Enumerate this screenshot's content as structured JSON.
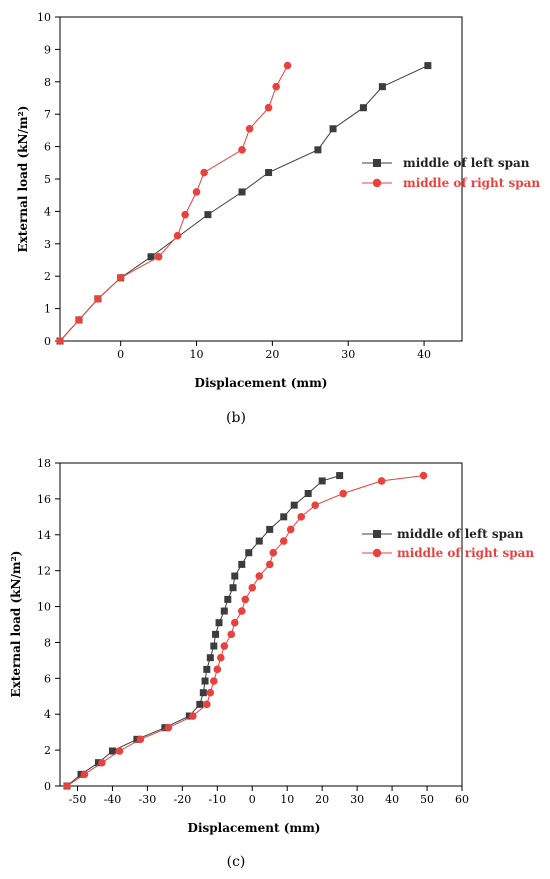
{
  "chart_data": [
    {
      "type": "line",
      "caption": "(b)",
      "xlabel": "Displacement (mm)",
      "ylabel": "External load (kN/m²)",
      "xlim": [
        -8,
        45
      ],
      "ylim": [
        0,
        10
      ],
      "xticks": [
        0,
        10,
        20,
        30,
        40
      ],
      "yticks": [
        0,
        1,
        2,
        3,
        4,
        5,
        6,
        7,
        8,
        9,
        10
      ],
      "legend_position": "right",
      "series": [
        {
          "name": "middle of left span",
          "color": "#3c3c3c",
          "marker": "square",
          "x": [
            -8,
            -5.5,
            -3,
            0,
            4,
            11.5,
            16,
            19.5,
            26,
            28,
            32,
            34.5,
            40.5
          ],
          "y": [
            0,
            0.65,
            1.3,
            1.95,
            2.6,
            3.9,
            4.6,
            5.2,
            5.9,
            6.55,
            7.2,
            7.85,
            8.5
          ]
        },
        {
          "name": "middle of right span",
          "color": "#e8423f",
          "marker": "circle",
          "x": [
            -8,
            -5.5,
            -3,
            0,
            5,
            7.5,
            8.5,
            10,
            11,
            16,
            17,
            19.5,
            20.5,
            22
          ],
          "y": [
            0,
            0.65,
            1.3,
            1.95,
            2.6,
            3.25,
            3.9,
            4.6,
            5.2,
            5.9,
            6.55,
            7.2,
            7.85,
            8.5
          ]
        }
      ]
    },
    {
      "type": "line",
      "caption": "(c)",
      "xlabel": "Displacement (mm)",
      "ylabel": "External load (kN/m²)",
      "xlim": [
        -55,
        60
      ],
      "ylim": [
        0,
        18
      ],
      "xticks": [
        -50,
        -40,
        -30,
        -20,
        -10,
        0,
        10,
        20,
        30,
        40,
        50,
        60
      ],
      "yticks": [
        0,
        2,
        4,
        6,
        8,
        10,
        12,
        14,
        16,
        18
      ],
      "legend_position": "right",
      "series": [
        {
          "name": "middle of left span",
          "color": "#3c3c3c",
          "marker": "square",
          "x": [
            -53,
            -49,
            -44,
            -40,
            -33,
            -25,
            -18,
            -15,
            -14,
            -13.5,
            -13,
            -12,
            -11,
            -10.5,
            -9.5,
            -8,
            -7,
            -5.5,
            -5,
            -3,
            -1,
            2,
            5,
            9,
            12,
            16,
            20,
            25
          ],
          "y": [
            0,
            0.65,
            1.3,
            1.95,
            2.6,
            3.25,
            3.9,
            4.55,
            5.2,
            5.85,
            6.5,
            7.15,
            7.8,
            8.45,
            9.1,
            9.75,
            10.4,
            11.05,
            11.7,
            12.35,
            13.0,
            13.65,
            14.3,
            15.0,
            15.65,
            16.3,
            17.0,
            17.3
          ]
        },
        {
          "name": "middle of right span",
          "color": "#e8423f",
          "marker": "circle",
          "x": [
            -53,
            -48,
            -43,
            -38,
            -32,
            -24,
            -17,
            -13,
            -12,
            -11,
            -10,
            -9,
            -8,
            -6,
            -5,
            -3,
            -2,
            0,
            2,
            5,
            6,
            9,
            11,
            14,
            18,
            26,
            37,
            49
          ],
          "y": [
            0,
            0.65,
            1.3,
            1.95,
            2.6,
            3.25,
            3.9,
            4.55,
            5.2,
            5.85,
            6.5,
            7.15,
            7.8,
            8.45,
            9.1,
            9.75,
            10.4,
            11.05,
            11.7,
            12.35,
            13.0,
            13.65,
            14.3,
            15.0,
            15.65,
            16.3,
            17.0,
            17.3
          ]
        }
      ]
    }
  ]
}
